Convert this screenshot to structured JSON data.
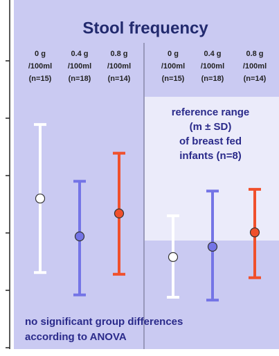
{
  "chart_data": {
    "type": "errorbar",
    "title": "Stool frequency",
    "ylim": [
      0,
      5
    ],
    "yticks": [
      0,
      1,
      2,
      3,
      4,
      5
    ],
    "colors": [
      "#ffffff",
      "#7474e6",
      "#f0502c"
    ],
    "panels": [
      {
        "categories": [
          "0 g\n/100ml\n(n=15)",
          "0.4 g\n/100ml\n(n=18)",
          "0.8 g\n/100ml\n(n=14)"
        ],
        "means": [
          2.6,
          1.94,
          2.34
        ],
        "low": [
          1.31,
          0.92,
          1.28
        ],
        "high": [
          3.89,
          2.9,
          3.39
        ]
      },
      {
        "categories": [
          "0 g\n/100ml\n(n=15)",
          "0.4 g\n/100ml\n(n=18)",
          "0.8 g\n/100ml\n(n=14)"
        ],
        "means": [
          1.58,
          1.76,
          2.01
        ],
        "low": [
          0.88,
          0.83,
          1.22
        ],
        "high": [
          2.3,
          2.73,
          2.76
        ]
      }
    ],
    "annotations": [
      "reference range\n(m ± SD)\nof breast fed\ninfants (n=8)",
      "no significant group differences\naccording to ANOVA"
    ]
  }
}
